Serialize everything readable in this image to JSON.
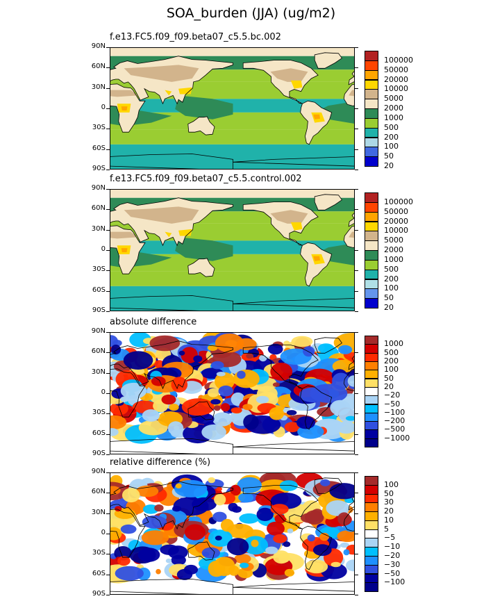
{
  "title": "SOA_burden (JJA) (ug/m2)",
  "chart_data": [
    {
      "type": "heatmap",
      "title": "f.e13.FC5.f09_f09.beta07_c5.5.bc.002",
      "yticks": [
        "90N",
        "60N",
        "30N",
        "0",
        "30S",
        "60S",
        "90S"
      ],
      "ylim": [
        -90,
        90
      ],
      "xlim": [
        0,
        360
      ],
      "legend": "right",
      "levels": [
        "100000",
        "50000",
        "20000",
        "10000",
        "5000",
        "2000",
        "1000",
        "500",
        "200",
        "100",
        "50",
        "20"
      ],
      "colors": [
        "#b22222",
        "#ff4500",
        "#ffa500",
        "#ffd700",
        "#d2b48c",
        "#f5e6c6",
        "#2e8b57",
        "#9acd32",
        "#20b2aa",
        "#add8e6",
        "#4169e1",
        "#0000cd"
      ]
    },
    {
      "type": "heatmap",
      "title": "f.e13.FC5.f09_f09.beta07_c5.5.control.002",
      "yticks": [
        "90N",
        "60N",
        "30N",
        "0",
        "30S",
        "60S",
        "90S"
      ],
      "ylim": [
        -90,
        90
      ],
      "xlim": [
        0,
        360
      ],
      "legend": "right",
      "levels": [
        "100000",
        "50000",
        "20000",
        "10000",
        "5000",
        "2000",
        "1000",
        "500",
        "200",
        "100",
        "50",
        "20"
      ],
      "colors": [
        "#b22222",
        "#ff4500",
        "#ffa500",
        "#ffd700",
        "#d2b48c",
        "#f5e6c6",
        "#2e8b57",
        "#9acd32",
        "#20b2aa",
        "#b0e0e6",
        "#6495ed",
        "#0000cd"
      ]
    },
    {
      "type": "heatmap",
      "title": "absolute difference",
      "yticks": [
        "90N",
        "60N",
        "30N",
        "0",
        "30S",
        "60S",
        "90S"
      ],
      "ylim": [
        -90,
        90
      ],
      "xlim": [
        0,
        360
      ],
      "legend": "right",
      "levels": [
        "1000",
        "500",
        "200",
        "100",
        "50",
        "20",
        "−20",
        "−50",
        "−100",
        "−200",
        "−500",
        "−1000"
      ],
      "colors": [
        "#a52a2a",
        "#d40000",
        "#ff2a00",
        "#ff7f00",
        "#ffb000",
        "#ffe066",
        "#ffffff",
        "#aad4f5",
        "#00bfff",
        "#1e90ff",
        "#3050e0",
        "#0000a0",
        "#00008b"
      ]
    },
    {
      "type": "heatmap",
      "title": "relative difference (%)",
      "yticks": [
        "90N",
        "60N",
        "30N",
        "0",
        "30S",
        "60S",
        "90S"
      ],
      "ylim": [
        -90,
        90
      ],
      "xlim": [
        0,
        360
      ],
      "legend": "right",
      "levels": [
        "100",
        "50",
        "30",
        "20",
        "10",
        "5",
        "−5",
        "−10",
        "−20",
        "−30",
        "−50",
        "−100"
      ],
      "colors": [
        "#a52a2a",
        "#d40000",
        "#ff2a00",
        "#ff7f00",
        "#ffb000",
        "#ffe066",
        "#ffffff",
        "#aad4f5",
        "#00bfff",
        "#1e90ff",
        "#3050e0",
        "#0000a0",
        "#00008b"
      ]
    }
  ]
}
